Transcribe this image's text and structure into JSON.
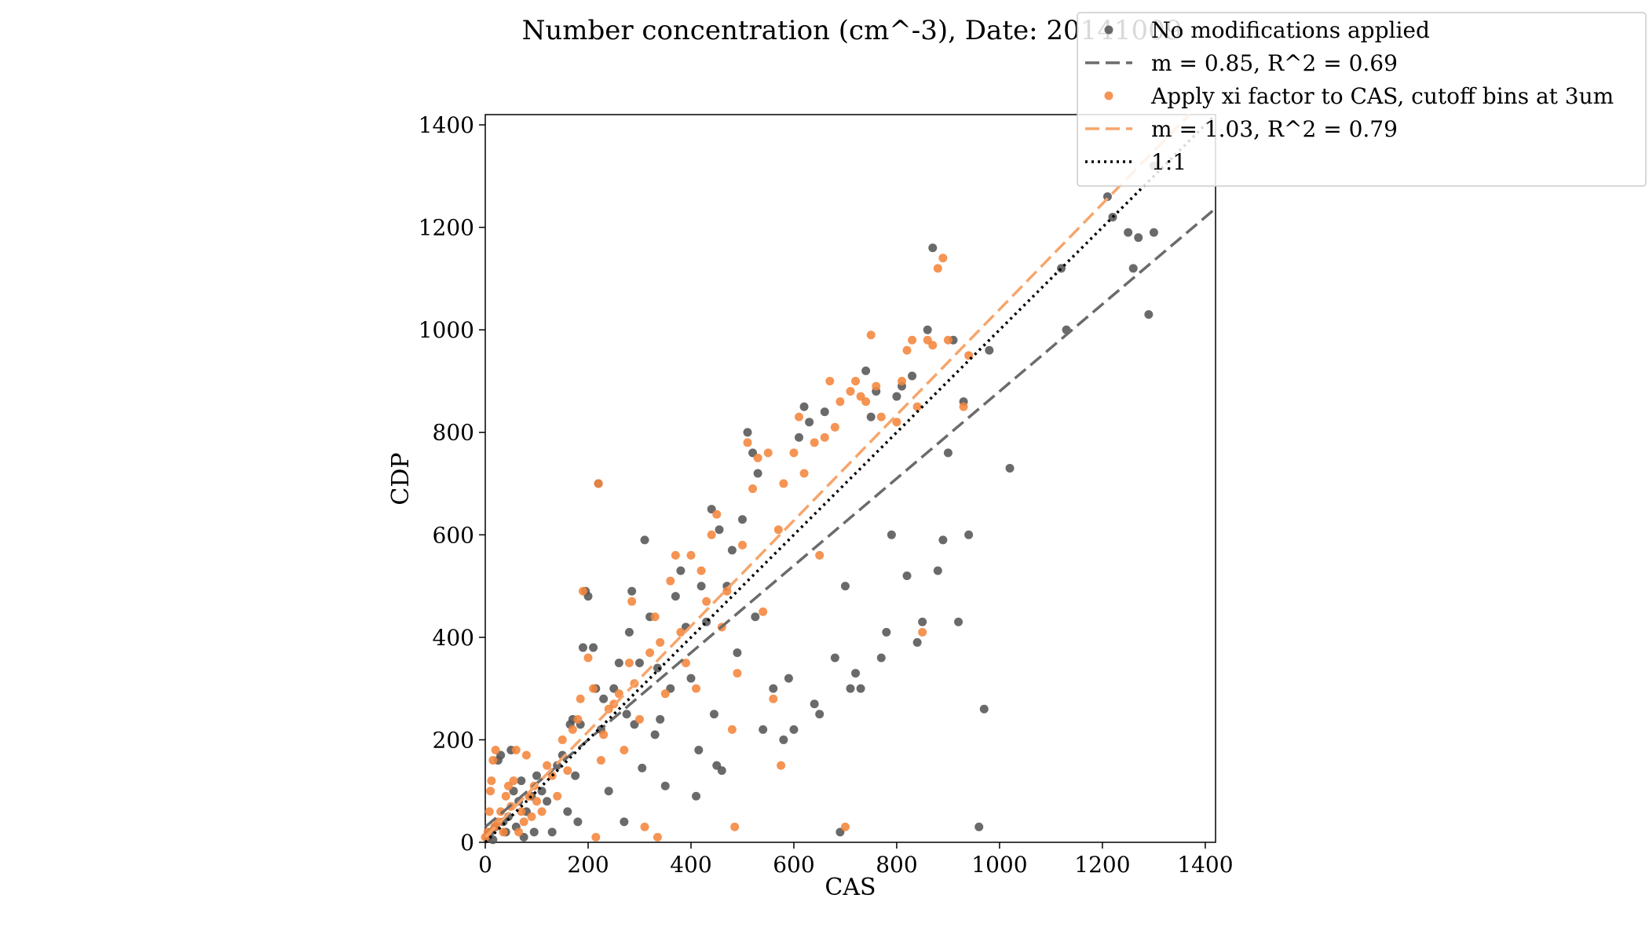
{
  "chart_data": {
    "type": "scatter",
    "title": "Number concentration (cm^-3), Date: 20141009",
    "xlabel": "CAS",
    "ylabel": "CDP",
    "xlim": [
      0,
      1420
    ],
    "ylim": [
      0,
      1420
    ],
    "xticks": [
      0,
      200,
      400,
      600,
      800,
      1000,
      1200,
      1400
    ],
    "yticks": [
      0,
      200,
      400,
      600,
      800,
      1000,
      1200,
      1400
    ],
    "grid": false,
    "legend_position": "top-right",
    "legend": [
      {
        "label": "No modifications applied",
        "kind": "marker",
        "color": "#555555"
      },
      {
        "label": "m = 0.85, R^2 = 0.69",
        "kind": "dashed",
        "color": "#6b6b6b"
      },
      {
        "label": "Apply xi factor to CAS, cutoff bins at 3um",
        "kind": "marker",
        "color": "#f4853b"
      },
      {
        "label": "m = 1.03, R^2 = 0.79",
        "kind": "dashed",
        "color": "#f7a56b"
      },
      {
        "label": "1:1",
        "kind": "dotted",
        "color": "#000000"
      }
    ],
    "fit_lines": [
      {
        "slope": 0.85,
        "intercept": 30,
        "color": "#6b6b6b",
        "style": "dashed"
      },
      {
        "slope": 1.03,
        "intercept": 10,
        "color": "#f7a56b",
        "style": "dashed"
      },
      {
        "slope": 1.0,
        "intercept": 0,
        "color": "#000000",
        "style": "dotted"
      }
    ],
    "series": [
      {
        "name": "No modifications applied",
        "color": "#555555",
        "points": [
          [
            5,
            10
          ],
          [
            10,
            20
          ],
          [
            15,
            5
          ],
          [
            20,
            30
          ],
          [
            25,
            160
          ],
          [
            30,
            170
          ],
          [
            35,
            40
          ],
          [
            40,
            20
          ],
          [
            45,
            50
          ],
          [
            50,
            180
          ],
          [
            55,
            100
          ],
          [
            60,
            30
          ],
          [
            65,
            80
          ],
          [
            70,
            120
          ],
          [
            75,
            10
          ],
          [
            80,
            60
          ],
          [
            90,
            90
          ],
          [
            95,
            20
          ],
          [
            100,
            130
          ],
          [
            110,
            100
          ],
          [
            120,
            80
          ],
          [
            130,
            20
          ],
          [
            140,
            150
          ],
          [
            150,
            170
          ],
          [
            160,
            60
          ],
          [
            165,
            230
          ],
          [
            170,
            240
          ],
          [
            175,
            130
          ],
          [
            180,
            40
          ],
          [
            185,
            230
          ],
          [
            190,
            380
          ],
          [
            195,
            490
          ],
          [
            200,
            480
          ],
          [
            210,
            380
          ],
          [
            215,
            300
          ],
          [
            220,
            700
          ],
          [
            225,
            220
          ],
          [
            230,
            280
          ],
          [
            240,
            100
          ],
          [
            250,
            300
          ],
          [
            260,
            350
          ],
          [
            270,
            40
          ],
          [
            275,
            250
          ],
          [
            280,
            410
          ],
          [
            285,
            490
          ],
          [
            290,
            230
          ],
          [
            300,
            350
          ],
          [
            305,
            145
          ],
          [
            310,
            590
          ],
          [
            320,
            440
          ],
          [
            330,
            210
          ],
          [
            335,
            340
          ],
          [
            340,
            240
          ],
          [
            350,
            110
          ],
          [
            360,
            300
          ],
          [
            370,
            480
          ],
          [
            380,
            530
          ],
          [
            390,
            420
          ],
          [
            400,
            320
          ],
          [
            410,
            90
          ],
          [
            415,
            180
          ],
          [
            420,
            500
          ],
          [
            430,
            430
          ],
          [
            440,
            650
          ],
          [
            445,
            250
          ],
          [
            450,
            150
          ],
          [
            455,
            610
          ],
          [
            460,
            140
          ],
          [
            470,
            500
          ],
          [
            480,
            570
          ],
          [
            490,
            370
          ],
          [
            500,
            630
          ],
          [
            510,
            800
          ],
          [
            520,
            760
          ],
          [
            525,
            440
          ],
          [
            530,
            720
          ],
          [
            540,
            220
          ],
          [
            560,
            300
          ],
          [
            580,
            200
          ],
          [
            590,
            320
          ],
          [
            600,
            220
          ],
          [
            610,
            790
          ],
          [
            620,
            850
          ],
          [
            630,
            820
          ],
          [
            640,
            270
          ],
          [
            650,
            250
          ],
          [
            660,
            840
          ],
          [
            680,
            360
          ],
          [
            690,
            20
          ],
          [
            700,
            500
          ],
          [
            710,
            300
          ],
          [
            720,
            330
          ],
          [
            730,
            300
          ],
          [
            740,
            920
          ],
          [
            750,
            830
          ],
          [
            760,
            880
          ],
          [
            770,
            360
          ],
          [
            780,
            410
          ],
          [
            790,
            600
          ],
          [
            800,
            870
          ],
          [
            810,
            890
          ],
          [
            820,
            520
          ],
          [
            830,
            910
          ],
          [
            840,
            390
          ],
          [
            850,
            430
          ],
          [
            860,
            1000
          ],
          [
            870,
            1160
          ],
          [
            880,
            530
          ],
          [
            890,
            590
          ],
          [
            900,
            760
          ],
          [
            910,
            980
          ],
          [
            920,
            430
          ],
          [
            930,
            860
          ],
          [
            940,
            600
          ],
          [
            960,
            30
          ],
          [
            970,
            260
          ],
          [
            980,
            960
          ],
          [
            1020,
            730
          ],
          [
            1120,
            1120
          ],
          [
            1130,
            1000
          ],
          [
            1210,
            1260
          ],
          [
            1220,
            1220
          ],
          [
            1250,
            1190
          ],
          [
            1260,
            1120
          ],
          [
            1270,
            1180
          ],
          [
            1290,
            1030
          ],
          [
            1300,
            1190
          ],
          [
            1300,
            1320
          ]
        ]
      },
      {
        "name": "Apply xi factor to CAS, cutoff bins at 3um",
        "color": "#f4853b",
        "points": [
          [
            0,
            10
          ],
          [
            5,
            20
          ],
          [
            8,
            60
          ],
          [
            10,
            100
          ],
          [
            12,
            120
          ],
          [
            15,
            160
          ],
          [
            18,
            30
          ],
          [
            20,
            180
          ],
          [
            25,
            40
          ],
          [
            30,
            60
          ],
          [
            35,
            20
          ],
          [
            40,
            90
          ],
          [
            45,
            110
          ],
          [
            50,
            70
          ],
          [
            55,
            120
          ],
          [
            60,
            180
          ],
          [
            65,
            20
          ],
          [
            70,
            60
          ],
          [
            75,
            40
          ],
          [
            80,
            170
          ],
          [
            85,
            90
          ],
          [
            90,
            50
          ],
          [
            95,
            110
          ],
          [
            100,
            80
          ],
          [
            110,
            60
          ],
          [
            120,
            150
          ],
          [
            130,
            130
          ],
          [
            140,
            90
          ],
          [
            150,
            200
          ],
          [
            160,
            140
          ],
          [
            170,
            220
          ],
          [
            180,
            240
          ],
          [
            185,
            280
          ],
          [
            190,
            490
          ],
          [
            200,
            360
          ],
          [
            210,
            300
          ],
          [
            215,
            10
          ],
          [
            220,
            700
          ],
          [
            225,
            160
          ],
          [
            230,
            210
          ],
          [
            240,
            260
          ],
          [
            250,
            270
          ],
          [
            260,
            290
          ],
          [
            270,
            180
          ],
          [
            280,
            350
          ],
          [
            285,
            470
          ],
          [
            290,
            310
          ],
          [
            300,
            240
          ],
          [
            310,
            30
          ],
          [
            320,
            370
          ],
          [
            330,
            440
          ],
          [
            335,
            10
          ],
          [
            340,
            390
          ],
          [
            350,
            290
          ],
          [
            360,
            510
          ],
          [
            370,
            560
          ],
          [
            380,
            410
          ],
          [
            390,
            350
          ],
          [
            400,
            560
          ],
          [
            410,
            300
          ],
          [
            420,
            530
          ],
          [
            430,
            470
          ],
          [
            440,
            600
          ],
          [
            450,
            640
          ],
          [
            460,
            420
          ],
          [
            470,
            490
          ],
          [
            480,
            220
          ],
          [
            485,
            30
          ],
          [
            490,
            330
          ],
          [
            500,
            580
          ],
          [
            510,
            780
          ],
          [
            520,
            690
          ],
          [
            530,
            750
          ],
          [
            540,
            450
          ],
          [
            550,
            760
          ],
          [
            560,
            280
          ],
          [
            570,
            610
          ],
          [
            575,
            150
          ],
          [
            580,
            700
          ],
          [
            600,
            760
          ],
          [
            610,
            830
          ],
          [
            620,
            720
          ],
          [
            640,
            780
          ],
          [
            650,
            560
          ],
          [
            660,
            790
          ],
          [
            670,
            900
          ],
          [
            680,
            810
          ],
          [
            690,
            860
          ],
          [
            700,
            30
          ],
          [
            710,
            880
          ],
          [
            720,
            900
          ],
          [
            730,
            870
          ],
          [
            740,
            860
          ],
          [
            750,
            990
          ],
          [
            760,
            890
          ],
          [
            770,
            830
          ],
          [
            800,
            820
          ],
          [
            810,
            900
          ],
          [
            820,
            960
          ],
          [
            830,
            980
          ],
          [
            840,
            850
          ],
          [
            850,
            410
          ],
          [
            860,
            980
          ],
          [
            870,
            970
          ],
          [
            880,
            1120
          ],
          [
            890,
            1140
          ],
          [
            900,
            980
          ],
          [
            930,
            850
          ],
          [
            940,
            950
          ]
        ]
      }
    ]
  }
}
